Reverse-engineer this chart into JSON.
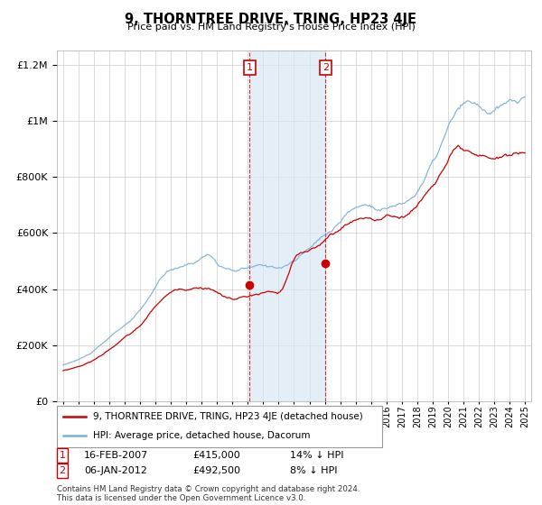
{
  "title": "9, THORNTREE DRIVE, TRING, HP23 4JE",
  "subtitle": "Price paid vs. HM Land Registry's House Price Index (HPI)",
  "legend_line1": "9, THORNTREE DRIVE, TRING, HP23 4JE (detached house)",
  "legend_line2": "HPI: Average price, detached house, Dacorum",
  "transaction1_date": "16-FEB-2007",
  "transaction1_price": "£415,000",
  "transaction1_hpi": "14% ↓ HPI",
  "transaction2_date": "06-JAN-2012",
  "transaction2_price": "£492,500",
  "transaction2_hpi": "8% ↓ HPI",
  "footer1": "Contains HM Land Registry data © Crown copyright and database right 2024.",
  "footer2": "This data is licensed under the Open Government Licence v3.0.",
  "hpi_color": "#7ab0d4",
  "price_color": "#cc0000",
  "transaction1_year": 2007.12,
  "transaction2_year": 2012.04,
  "ylim_min": 0,
  "ylim_max": 1250000,
  "xmin": 1994.6,
  "xmax": 2025.4,
  "background_color": "#ffffff",
  "grid_color": "#cccccc",
  "shade_color": "#d8e8f5"
}
